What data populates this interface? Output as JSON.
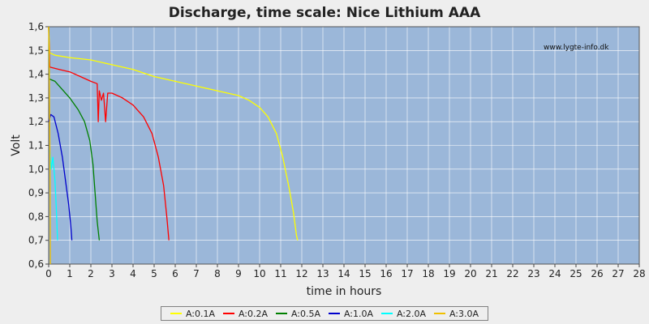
{
  "chart_data": {
    "type": "line",
    "title": "Discharge, time scale: Nice Lithium AAA",
    "xlabel": "time in hours",
    "ylabel": "Volt",
    "watermark": "www.lygte-info.dk",
    "xlim": [
      0,
      28
    ],
    "ylim": [
      0.6,
      1.6
    ],
    "xticks": [
      0,
      1,
      2,
      3,
      4,
      5,
      6,
      7,
      8,
      9,
      10,
      11,
      12,
      13,
      14,
      15,
      16,
      17,
      18,
      19,
      20,
      21,
      22,
      23,
      24,
      25,
      26,
      27,
      28
    ],
    "yticks": [
      "0,6",
      "0,7",
      "0,8",
      "0,9",
      "1,0",
      "1,1",
      "1,2",
      "1,3",
      "1,4",
      "1,5",
      "1,6"
    ],
    "grid": true,
    "legend_position": "bottom",
    "plot_background": "#9bb7d9",
    "series": [
      {
        "name": "A:0.1A",
        "color": "#ffff00",
        "points": [
          [
            0,
            1.6
          ],
          [
            0.05,
            1.49
          ],
          [
            0.3,
            1.48
          ],
          [
            1,
            1.47
          ],
          [
            2,
            1.46
          ],
          [
            3,
            1.44
          ],
          [
            4,
            1.42
          ],
          [
            5,
            1.39
          ],
          [
            6,
            1.37
          ],
          [
            7,
            1.35
          ],
          [
            8,
            1.33
          ],
          [
            9,
            1.31
          ],
          [
            9.5,
            1.29
          ],
          [
            10,
            1.26
          ],
          [
            10.4,
            1.22
          ],
          [
            10.8,
            1.15
          ],
          [
            11.1,
            1.05
          ],
          [
            11.4,
            0.92
          ],
          [
            11.6,
            0.82
          ],
          [
            11.75,
            0.72
          ],
          [
            11.8,
            0.7
          ]
        ]
      },
      {
        "name": "A:0.2A",
        "color": "#ff0000",
        "points": [
          [
            0,
            1.6
          ],
          [
            0.05,
            1.43
          ],
          [
            0.5,
            1.42
          ],
          [
            1,
            1.41
          ],
          [
            1.5,
            1.39
          ],
          [
            2,
            1.37
          ],
          [
            2.3,
            1.36
          ],
          [
            2.35,
            1.2
          ],
          [
            2.4,
            1.33
          ],
          [
            2.5,
            1.29
          ],
          [
            2.6,
            1.32
          ],
          [
            2.7,
            1.2
          ],
          [
            2.8,
            1.32
          ],
          [
            3,
            1.32
          ],
          [
            3.5,
            1.3
          ],
          [
            4,
            1.27
          ],
          [
            4.5,
            1.22
          ],
          [
            4.9,
            1.15
          ],
          [
            5.2,
            1.05
          ],
          [
            5.45,
            0.93
          ],
          [
            5.6,
            0.8
          ],
          [
            5.7,
            0.7
          ]
        ]
      },
      {
        "name": "A:0.5A",
        "color": "#008000",
        "points": [
          [
            0,
            1.6
          ],
          [
            0.03,
            1.38
          ],
          [
            0.3,
            1.37
          ],
          [
            0.6,
            1.34
          ],
          [
            1,
            1.3
          ],
          [
            1.4,
            1.25
          ],
          [
            1.7,
            1.2
          ],
          [
            1.95,
            1.12
          ],
          [
            2.1,
            1.02
          ],
          [
            2.2,
            0.9
          ],
          [
            2.3,
            0.78
          ],
          [
            2.4,
            0.7
          ]
        ]
      },
      {
        "name": "A:1.0A",
        "color": "#0000cc",
        "points": [
          [
            0,
            1.2
          ],
          [
            0.1,
            1.23
          ],
          [
            0.25,
            1.22
          ],
          [
            0.45,
            1.15
          ],
          [
            0.65,
            1.05
          ],
          [
            0.8,
            0.95
          ],
          [
            0.95,
            0.85
          ],
          [
            1.05,
            0.76
          ],
          [
            1.1,
            0.7
          ]
        ]
      },
      {
        "name": "A:2.0A",
        "color": "#00ffff",
        "points": [
          [
            0.05,
            1.08
          ],
          [
            0.12,
            1.0
          ],
          [
            0.2,
            1.05
          ],
          [
            0.3,
            0.95
          ],
          [
            0.37,
            0.82
          ],
          [
            0.42,
            0.7
          ]
        ]
      },
      {
        "name": "A:3.0A",
        "color": "#f0c000",
        "points": [
          [
            0,
            1.6
          ],
          [
            0.02,
            1.5
          ],
          [
            0.03,
            1.4
          ],
          [
            0.05,
            1.2
          ],
          [
            0.07,
            0.9
          ],
          [
            0.08,
            0.6
          ]
        ]
      }
    ]
  }
}
